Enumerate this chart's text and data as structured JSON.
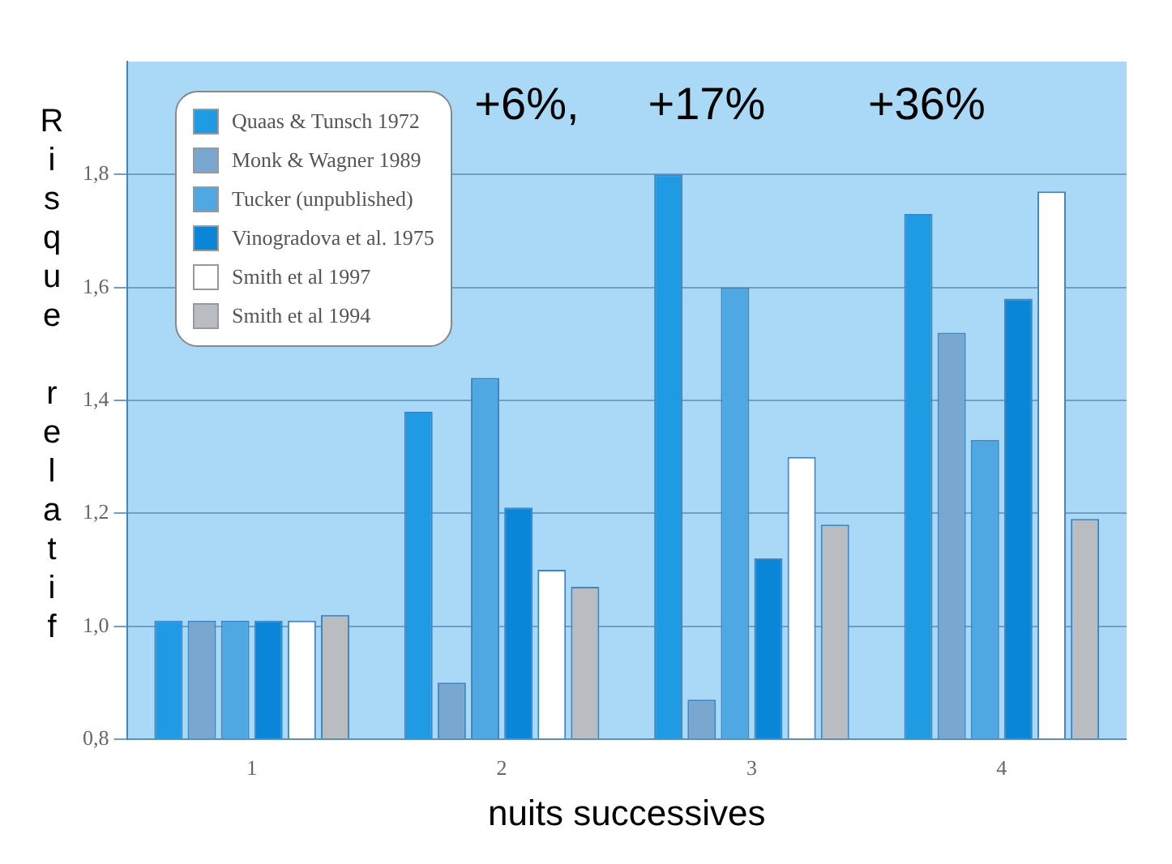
{
  "chart_data": {
    "type": "bar",
    "xlabel": "nuits successives",
    "ylabel": "Risque relatif",
    "categories": [
      "1",
      "2",
      "3",
      "4"
    ],
    "series": [
      {
        "name": "Quaas & Tunsch 1972",
        "color": "#1e9be3",
        "values": [
          1.01,
          1.38,
          1.8,
          1.73
        ]
      },
      {
        "name": "Monk & Wagner 1989",
        "color": "#7aa7cf",
        "values": [
          1.01,
          0.9,
          0.87,
          1.52
        ]
      },
      {
        "name": "Tucker (unpublished)",
        "color": "#4fa8e2",
        "values": [
          1.01,
          1.44,
          1.6,
          1.33
        ]
      },
      {
        "name": "Vinogradova et al. 1975",
        "color": "#0a86d8",
        "values": [
          1.01,
          1.21,
          1.12,
          1.58
        ]
      },
      {
        "name": "Smith et al 1997",
        "color": "#ffffff",
        "values": [
          1.01,
          1.1,
          1.3,
          1.77
        ]
      },
      {
        "name": "Smith et al 1994",
        "color": "#b9bcc0",
        "values": [
          1.02,
          1.07,
          1.18,
          1.19
        ]
      }
    ],
    "ylim": [
      0.8,
      2.0
    ],
    "yticks": [
      {
        "value": 0.8,
        "label": "0,8"
      },
      {
        "value": 1.0,
        "label": "1,0"
      },
      {
        "value": 1.2,
        "label": "1,2"
      },
      {
        "value": 1.4,
        "label": "1,4"
      },
      {
        "value": 1.6,
        "label": "1,6"
      },
      {
        "value": 1.8,
        "label": "1,8"
      }
    ],
    "grid": "y",
    "legend": "top left",
    "annotations": [
      "+6%,",
      "+17%",
      "+36%"
    ]
  }
}
